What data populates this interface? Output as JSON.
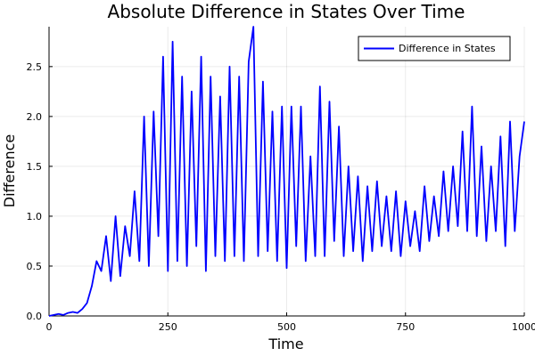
{
  "chart_data": {
    "type": "line",
    "title": "Absolute Difference in States Over Time",
    "xlabel": "Time",
    "ylabel": "Difference",
    "xlim": [
      0,
      1000
    ],
    "ylim": [
      0,
      2.9
    ],
    "x_ticks": [
      0,
      250,
      500,
      750,
      1000
    ],
    "x_tick_labels": [
      "0",
      "250",
      "500",
      "750",
      "1000"
    ],
    "y_ticks": [
      0,
      0.5,
      1.0,
      1.5,
      2.0,
      2.5
    ],
    "y_tick_labels": [
      "0.0",
      "0.5",
      "1.0",
      "1.5",
      "2.0",
      "2.5"
    ],
    "grid": true,
    "legend": {
      "position": "top-right"
    },
    "series": [
      {
        "name": "Difference in States",
        "color": "#0000ff",
        "x": [
          0,
          10,
          20,
          30,
          40,
          50,
          60,
          70,
          80,
          90,
          100,
          110,
          120,
          130,
          140,
          150,
          160,
          170,
          180,
          190,
          200,
          210,
          220,
          230,
          240,
          250,
          260,
          270,
          280,
          290,
          300,
          310,
          320,
          330,
          340,
          350,
          360,
          370,
          380,
          390,
          400,
          410,
          420,
          430,
          440,
          450,
          460,
          470,
          480,
          490,
          500,
          510,
          520,
          530,
          540,
          550,
          560,
          570,
          580,
          590,
          600,
          610,
          620,
          630,
          640,
          650,
          660,
          670,
          680,
          690,
          700,
          710,
          720,
          730,
          740,
          750,
          760,
          770,
          780,
          790,
          800,
          810,
          820,
          830,
          840,
          850,
          860,
          870,
          880,
          890,
          900,
          910,
          920,
          930,
          940,
          950,
          960,
          970,
          980,
          990,
          1000
        ],
        "y": [
          0.0,
          0.01,
          0.02,
          0.01,
          0.03,
          0.04,
          0.03,
          0.07,
          0.13,
          0.3,
          0.55,
          0.45,
          0.8,
          0.35,
          1.0,
          0.4,
          0.9,
          0.6,
          1.25,
          0.55,
          2.0,
          0.5,
          2.05,
          0.8,
          2.6,
          0.45,
          2.75,
          0.55,
          2.4,
          0.5,
          2.25,
          0.7,
          2.6,
          0.45,
          2.4,
          0.6,
          2.2,
          0.55,
          2.5,
          0.6,
          2.4,
          0.55,
          2.55,
          2.9,
          0.6,
          2.35,
          0.65,
          2.05,
          0.55,
          2.1,
          0.48,
          2.1,
          0.7,
          2.1,
          0.55,
          1.6,
          0.6,
          2.3,
          0.6,
          2.15,
          0.75,
          1.9,
          0.6,
          1.5,
          0.65,
          1.4,
          0.55,
          1.3,
          0.65,
          1.35,
          0.7,
          1.2,
          0.65,
          1.25,
          0.6,
          1.15,
          0.7,
          1.05,
          0.65,
          1.3,
          0.75,
          1.2,
          0.8,
          1.45,
          0.85,
          1.5,
          0.9,
          1.85,
          0.85,
          2.1,
          0.8,
          1.7,
          0.75,
          1.5,
          0.85,
          1.8,
          0.7,
          1.95,
          0.85,
          1.6,
          1.95
        ]
      }
    ]
  }
}
